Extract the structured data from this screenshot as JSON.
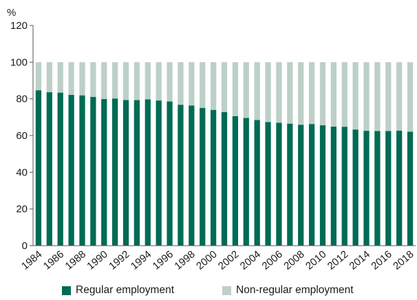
{
  "chart_data": {
    "type": "bar",
    "stacked": true,
    "unit": "%",
    "categories": [
      "1984",
      "1985",
      "1986",
      "1987",
      "1988",
      "1989",
      "1990",
      "1991",
      "1992",
      "1993",
      "1994",
      "1995",
      "1996",
      "1997",
      "1998",
      "1999",
      "2000",
      "2001",
      "2002",
      "2003",
      "2004",
      "2005",
      "2006",
      "2007",
      "2008",
      "2009",
      "2010",
      "2011",
      "2012",
      "2013",
      "2014",
      "2015",
      "2016",
      "2017",
      "2018"
    ],
    "x_tick_labels": [
      "1984",
      "1986",
      "1988",
      "1990",
      "1992",
      "1994",
      "1996",
      "1998",
      "2000",
      "2002",
      "2004",
      "2006",
      "2008",
      "2010",
      "2012",
      "2014",
      "2016",
      "2018"
    ],
    "series": [
      {
        "name": "Regular employment",
        "color": "#006b54",
        "values": [
          84.7,
          83.6,
          83.4,
          82.2,
          81.9,
          81.1,
          79.9,
          80.2,
          79.4,
          79.3,
          79.7,
          79.1,
          78.6,
          76.8,
          76.4,
          75.1,
          74.0,
          72.8,
          70.6,
          69.6,
          68.5,
          67.4,
          67.0,
          66.5,
          65.9,
          66.3,
          65.6,
          64.9,
          64.8,
          63.3,
          62.6,
          62.5,
          62.5,
          62.7,
          62.1
        ]
      },
      {
        "name": "Non-regular employment",
        "color": "#bdd0c8",
        "values": [
          15.3,
          16.4,
          16.6,
          17.8,
          18.1,
          18.9,
          20.1,
          19.8,
          20.6,
          20.7,
          20.3,
          20.9,
          21.4,
          23.2,
          23.6,
          24.9,
          26.0,
          27.2,
          29.4,
          30.4,
          31.5,
          32.6,
          33.0,
          33.5,
          34.1,
          33.7,
          34.4,
          35.1,
          35.2,
          36.7,
          37.4,
          37.5,
          37.5,
          37.3,
          37.9
        ]
      }
    ],
    "ylim": [
      0,
      120
    ],
    "yticks": [
      0,
      20,
      40,
      60,
      80,
      100,
      120
    ],
    "grid": false,
    "legend_position": "bottom"
  }
}
